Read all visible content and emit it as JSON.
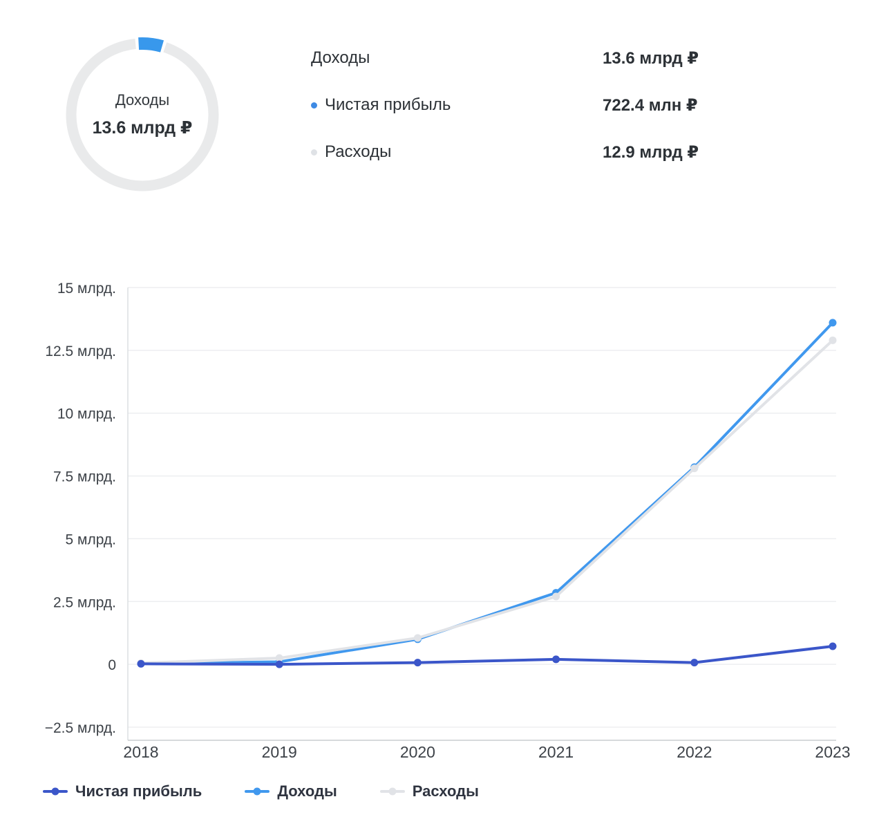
{
  "donut": {
    "center_label": "Доходы",
    "center_value": "13.6 млрд ₽",
    "ring_color": "#e9eaeb",
    "highlight_color": "#3898ec",
    "highlight_percent": 5.3
  },
  "summary": {
    "rows": [
      {
        "label": "Доходы",
        "value": "13.6 млрд ₽",
        "dot_color": ""
      },
      {
        "label": "Чистая прибыль",
        "value": "722.4 млн ₽",
        "dot_color": "#3e8ae4"
      },
      {
        "label": "Расходы",
        "value": "12.9 млрд ₽",
        "dot_color": "#dfe2e6"
      }
    ]
  },
  "chart_data": {
    "type": "line",
    "categories": [
      "2018",
      "2019",
      "2020",
      "2021",
      "2022",
      "2023"
    ],
    "series": [
      {
        "id": "net-profit",
        "name": "Чистая прибыль",
        "color": "#3b56c9",
        "values": [
          0.02,
          0.0,
          0.07,
          0.2,
          0.07,
          0.72
        ]
      },
      {
        "id": "revenue",
        "name": "Доходы",
        "color": "#4098ee",
        "values": [
          0.03,
          0.1,
          1.0,
          2.85,
          7.85,
          13.6
        ]
      },
      {
        "id": "expenses",
        "name": "Расходы",
        "color": "#e1e3e7",
        "values": [
          0.05,
          0.25,
          1.05,
          2.7,
          7.8,
          12.9
        ]
      }
    ],
    "y_ticks": [
      {
        "value": 15,
        "label": "15 млрд."
      },
      {
        "value": 12.5,
        "label": "12.5 млрд."
      },
      {
        "value": 10,
        "label": "10 млрд."
      },
      {
        "value": 7.5,
        "label": "7.5 млрд."
      },
      {
        "value": 5,
        "label": "5 млрд."
      },
      {
        "value": 2.5,
        "label": "2.5 млрд."
      },
      {
        "value": 0,
        "label": "0"
      },
      {
        "value": -2.5,
        "label": "−2.5 млрд."
      }
    ],
    "ylim": [
      -2.5,
      15
    ],
    "xlabel": "",
    "ylabel": "",
    "grid": true,
    "legend_position": "bottom",
    "legend": [
      {
        "id": "net-profit",
        "label": "Чистая прибыль",
        "color": "#3b56c9"
      },
      {
        "id": "revenue",
        "label": "Доходы",
        "color": "#4098ee"
      },
      {
        "id": "expenses",
        "label": "Расходы",
        "color": "#e1e3e7"
      }
    ]
  }
}
